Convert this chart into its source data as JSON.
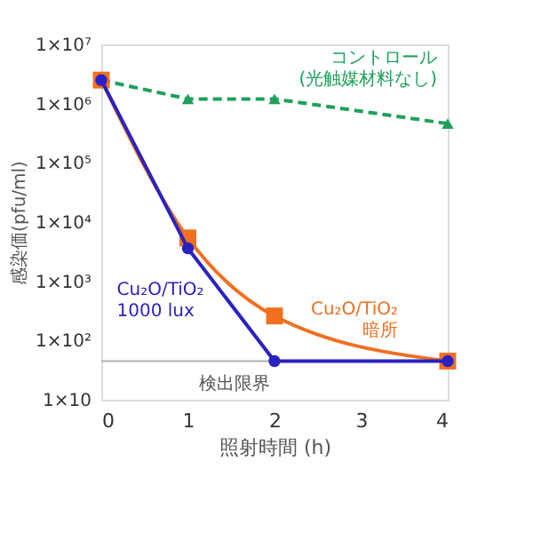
{
  "chart_data": {
    "type": "line",
    "xlabel": "照射時間 (h)",
    "ylabel": "感染価(pfu/ml)",
    "log": "y",
    "xlim": [
      0,
      4
    ],
    "xticks": [
      0,
      1,
      2,
      3,
      4
    ],
    "ylim": [
      10,
      10000000
    ],
    "yticks": [
      {
        "value": 10,
        "label": "1×10"
      },
      {
        "value": 100,
        "label": "1×10²"
      },
      {
        "value": 1000,
        "label": "1×10³"
      },
      {
        "value": 10000,
        "label": "1×10⁴"
      },
      {
        "value": 100000,
        "label": "1×10⁵"
      },
      {
        "value": 1000000,
        "label": "1×10⁶"
      },
      {
        "value": 10000000,
        "label": "1×10⁷"
      }
    ],
    "series": [
      {
        "name": "コントロール\n(光触媒材料なし)",
        "color": "#1fa05a",
        "x": [
          0,
          1,
          2,
          4
        ],
        "values": [
          2500000,
          1200000,
          1200000,
          460000
        ],
        "marker": "triangle",
        "line_style": "dashed"
      },
      {
        "name": "Cu₂O/TiO₂\n暗所",
        "color": "#f07020",
        "x": [
          0,
          1,
          2,
          4
        ],
        "values": [
          2500000,
          5400,
          260,
          45
        ],
        "marker": "square",
        "line_style": "solid"
      },
      {
        "name": "Cu₂O/TiO₂\n1000 lux",
        "color": "#2a22c0",
        "x": [
          0,
          1,
          2,
          4
        ],
        "values": [
          2500000,
          3600,
          45,
          45
        ],
        "marker": "circle",
        "line_style": "solid"
      }
    ],
    "ref_lines": [
      {
        "axis": "y",
        "value": 45,
        "label": "検出限界",
        "color": "#b0b0b0",
        "line_style": "solid"
      }
    ]
  }
}
